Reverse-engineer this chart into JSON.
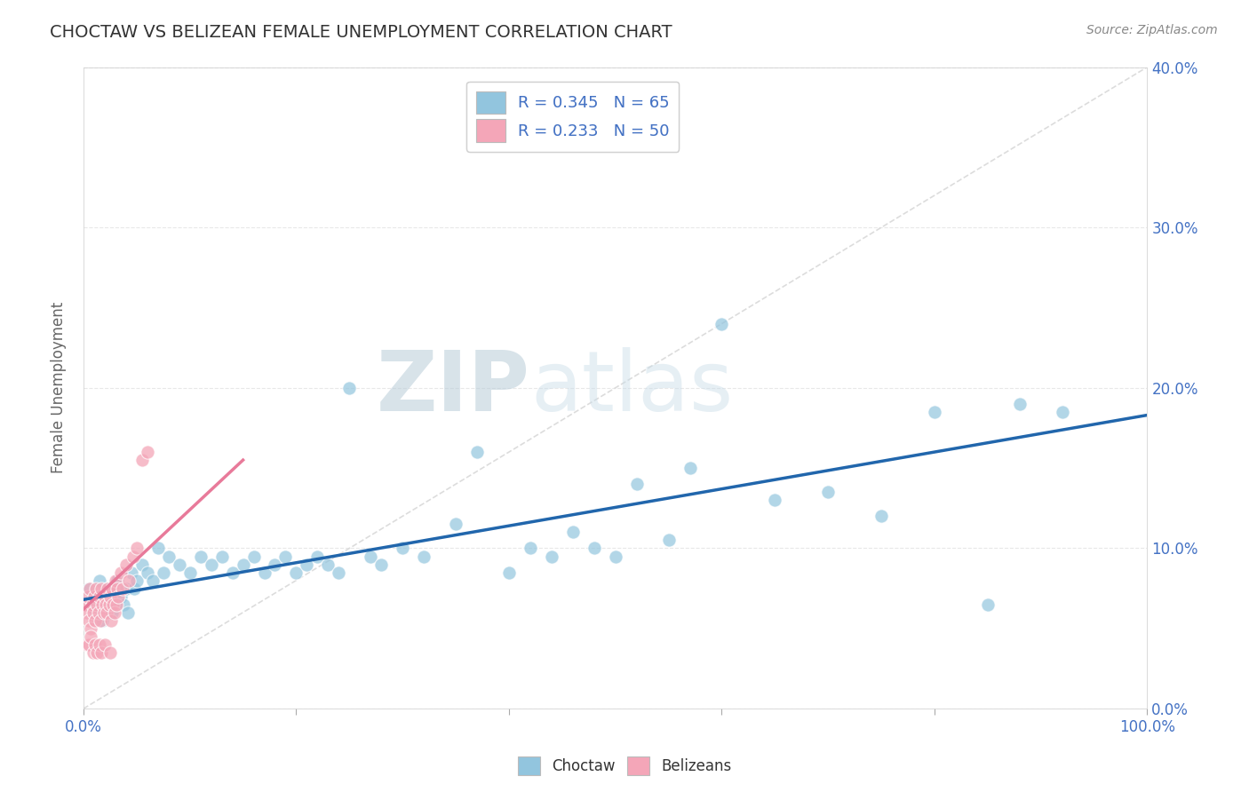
{
  "title": "CHOCTAW VS BELIZEAN FEMALE UNEMPLOYMENT CORRELATION CHART",
  "source": "Source: ZipAtlas.com",
  "ylabel": "Female Unemployment",
  "xlim": [
    0.0,
    1.0
  ],
  "ylim": [
    -0.02,
    0.42
  ],
  "plot_ylim": [
    0.0,
    0.4
  ],
  "xticks_minor": [
    0.2,
    0.4,
    0.6,
    0.8
  ],
  "xticks_major": [
    0.0,
    1.0
  ],
  "xticklabels_major": [
    "0.0%",
    "100.0%"
  ],
  "yticks": [
    0.0,
    0.1,
    0.2,
    0.3,
    0.4
  ],
  "yticklabels_right": [
    "0.0%",
    "10.0%",
    "20.0%",
    "30.0%",
    "40.0%"
  ],
  "choctaw_color": "#92c5de",
  "belizean_color": "#f4a6b8",
  "trend_blue_color": "#2166ac",
  "trend_pink_color": "#e87a9a",
  "diag_color": "#d9d9d9",
  "legend_label_choctaw": "R = 0.345   N = 65",
  "legend_label_belizean": "R = 0.233   N = 50",
  "bottom_legend_choctaw": "Choctaw",
  "bottom_legend_belizean": "Belizeans",
  "watermark_zip": "ZIP",
  "watermark_atlas": "atlas",
  "background_color": "#ffffff",
  "grid_color": "#e8e8e8",
  "title_color": "#333333",
  "axis_label_color": "#666666",
  "tick_color": "#4472c4",
  "legend_text_color": "#4472c4",
  "choctaw_x": [
    0.005,
    0.008,
    0.01,
    0.012,
    0.015,
    0.018,
    0.02,
    0.022,
    0.025,
    0.027,
    0.03,
    0.032,
    0.035,
    0.038,
    0.04,
    0.042,
    0.045,
    0.048,
    0.05,
    0.055,
    0.06,
    0.065,
    0.07,
    0.075,
    0.08,
    0.09,
    0.1,
    0.11,
    0.12,
    0.13,
    0.14,
    0.15,
    0.16,
    0.17,
    0.18,
    0.19,
    0.2,
    0.21,
    0.22,
    0.23,
    0.24,
    0.25,
    0.27,
    0.28,
    0.3,
    0.32,
    0.35,
    0.37,
    0.4,
    0.42,
    0.44,
    0.46,
    0.48,
    0.5,
    0.52,
    0.55,
    0.57,
    0.6,
    0.65,
    0.7,
    0.75,
    0.8,
    0.85,
    0.88,
    0.92
  ],
  "choctaw_y": [
    0.075,
    0.065,
    0.07,
    0.06,
    0.08,
    0.055,
    0.07,
    0.075,
    0.065,
    0.06,
    0.075,
    0.08,
    0.07,
    0.065,
    0.075,
    0.06,
    0.085,
    0.075,
    0.08,
    0.09,
    0.085,
    0.08,
    0.1,
    0.085,
    0.095,
    0.09,
    0.085,
    0.095,
    0.09,
    0.095,
    0.085,
    0.09,
    0.095,
    0.085,
    0.09,
    0.095,
    0.085,
    0.09,
    0.095,
    0.09,
    0.085,
    0.2,
    0.095,
    0.09,
    0.1,
    0.095,
    0.115,
    0.16,
    0.085,
    0.1,
    0.095,
    0.11,
    0.1,
    0.095,
    0.14,
    0.105,
    0.15,
    0.24,
    0.13,
    0.135,
    0.12,
    0.185,
    0.065,
    0.19,
    0.185
  ],
  "belizean_x": [
    0.002,
    0.003,
    0.004,
    0.005,
    0.006,
    0.007,
    0.008,
    0.009,
    0.01,
    0.011,
    0.012,
    0.013,
    0.014,
    0.015,
    0.016,
    0.017,
    0.018,
    0.019,
    0.02,
    0.021,
    0.022,
    0.023,
    0.024,
    0.025,
    0.026,
    0.027,
    0.028,
    0.029,
    0.03,
    0.031,
    0.032,
    0.033,
    0.035,
    0.037,
    0.04,
    0.043,
    0.047,
    0.05,
    0.055,
    0.06,
    0.003,
    0.005,
    0.007,
    0.009,
    0.011,
    0.013,
    0.015,
    0.017,
    0.02,
    0.025
  ],
  "belizean_y": [
    0.065,
    0.06,
    0.07,
    0.055,
    0.075,
    0.05,
    0.065,
    0.06,
    0.07,
    0.055,
    0.075,
    0.065,
    0.06,
    0.07,
    0.055,
    0.075,
    0.065,
    0.06,
    0.07,
    0.065,
    0.06,
    0.075,
    0.065,
    0.07,
    0.055,
    0.075,
    0.065,
    0.06,
    0.08,
    0.065,
    0.075,
    0.07,
    0.085,
    0.075,
    0.09,
    0.08,
    0.095,
    0.1,
    0.155,
    0.16,
    0.04,
    0.04,
    0.045,
    0.035,
    0.04,
    0.035,
    0.04,
    0.035,
    0.04,
    0.035
  ],
  "blue_trend_x": [
    0.0,
    1.0
  ],
  "blue_trend_y": [
    0.068,
    0.183
  ],
  "pink_trend_x": [
    0.0,
    0.15
  ],
  "pink_trend_y": [
    0.062,
    0.155
  ]
}
